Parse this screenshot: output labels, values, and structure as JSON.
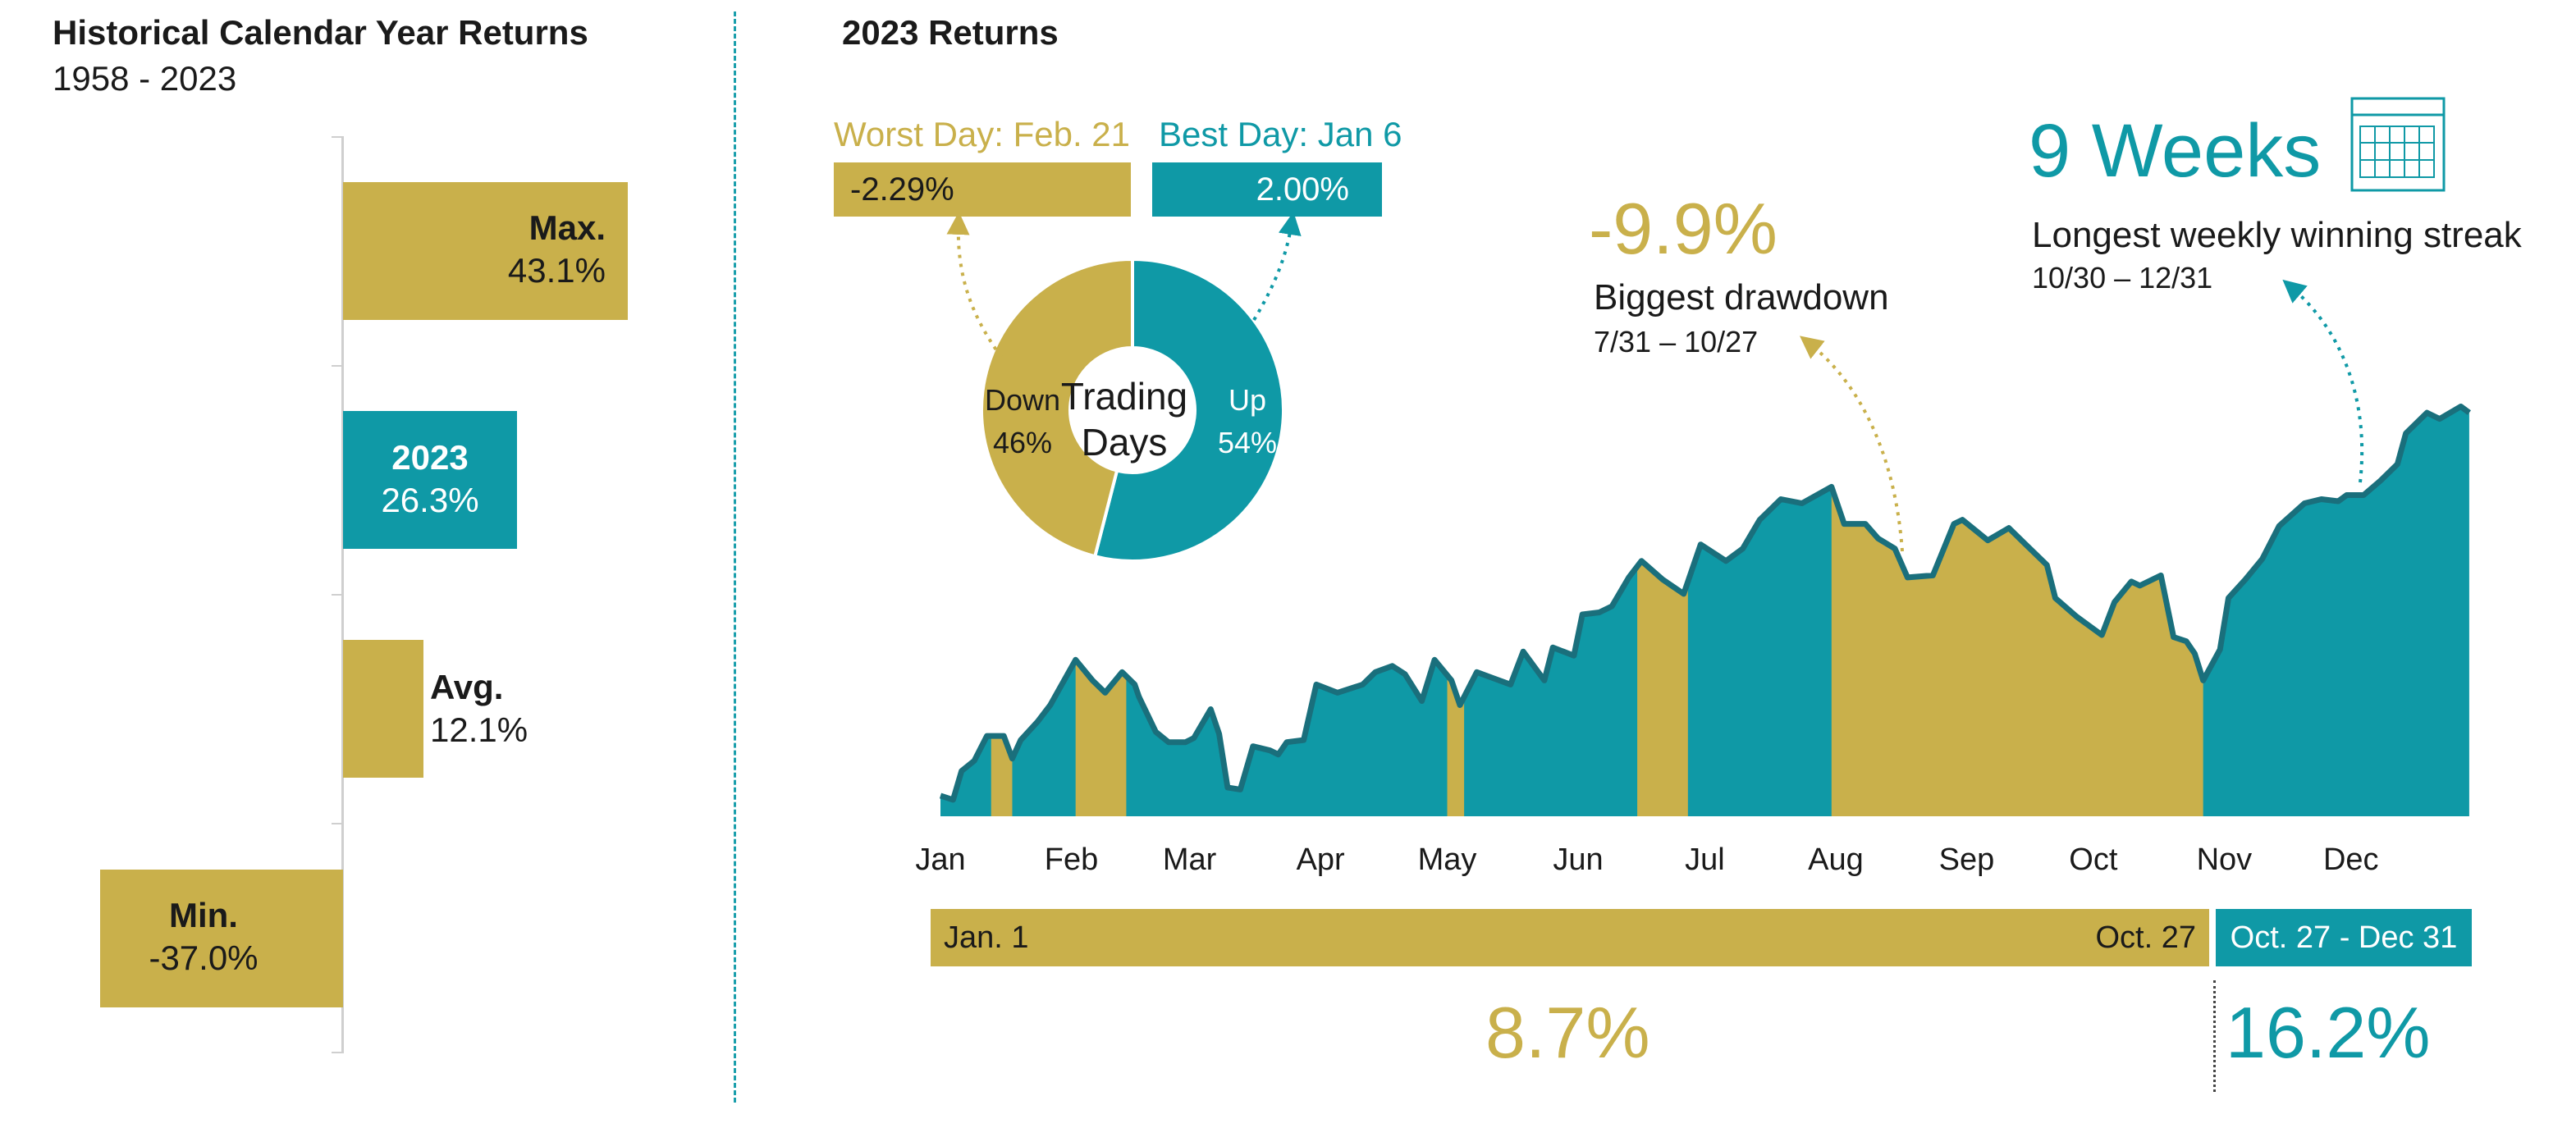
{
  "colors": {
    "gold": "#c9b04b",
    "teal": "#0f99a6",
    "line": "#1a6f7c"
  },
  "left": {
    "title": "Historical Calendar Year Returns",
    "subtitle": "1958 - 2023",
    "bars": [
      {
        "name": "Max.",
        "value_label": "43.1%",
        "value": 43.1
      },
      {
        "name": "2023",
        "value_label": "26.3%",
        "value": 26.3
      },
      {
        "name": "Avg.",
        "value_label": "12.1%",
        "value": 12.1
      },
      {
        "name": "Min.",
        "value_label": "-37.0%",
        "value": -37.0
      }
    ]
  },
  "right": {
    "title": "2023 Returns",
    "worst_day": {
      "label": "Worst Day: Feb. 21",
      "value": "-2.29%"
    },
    "best_day": {
      "label": "Best Day: Jan 6",
      "value": "2.00%"
    },
    "donut": {
      "center_line1": "Trading",
      "center_line2": "Days",
      "down_label": "Down",
      "down_pct": "46%",
      "down_value": 46,
      "up_label": "Up",
      "up_pct": "54%",
      "up_value": 54
    },
    "drawdown": {
      "value": "-9.9%",
      "label": "Biggest drawdown",
      "dates": "7/31 – 10/27"
    },
    "streak": {
      "value": "9 Weeks",
      "label": "Longest weekly winning streak",
      "dates": "10/30 – 12/31"
    },
    "periods": [
      {
        "start": "Jan. 1",
        "end": "Oct. 27",
        "return": "8.7%"
      },
      {
        "range": "Oct. 27 - Dec 31",
        "return": "16.2%"
      }
    ]
  },
  "chart_data": {
    "type": "area",
    "x_ticks": [
      "Jan",
      "Feb",
      "Mar",
      "Apr",
      "May",
      "Jun",
      "Jul",
      "Aug",
      "Sep",
      "Oct",
      "Nov",
      "Dec"
    ],
    "series": [
      {
        "values": [
          [
            "2023-01-01",
            3840
          ],
          [
            "2023-01-04",
            3830
          ],
          [
            "2023-01-06",
            3900
          ],
          [
            "2023-01-09",
            3925
          ],
          [
            "2023-01-12",
            3985
          ],
          [
            "2023-01-16",
            3985
          ],
          [
            "2023-01-18",
            3930
          ],
          [
            "2023-01-20",
            3975
          ],
          [
            "2023-01-24",
            4020
          ],
          [
            "2023-01-27",
            4060
          ],
          [
            "2023-02-02",
            4170
          ],
          [
            "2023-02-06",
            4120
          ],
          [
            "2023-02-09",
            4090
          ],
          [
            "2023-02-13",
            4140
          ],
          [
            "2023-02-16",
            4110
          ],
          [
            "2023-02-17",
            4080
          ],
          [
            "2023-02-21",
            3995
          ],
          [
            "2023-02-24",
            3970
          ],
          [
            "2023-02-28",
            3970
          ],
          [
            "2023-03-02",
            3980
          ],
          [
            "2023-03-06",
            4050
          ],
          [
            "2023-03-08",
            3990
          ],
          [
            "2023-03-10",
            3860
          ],
          [
            "2023-03-13",
            3855
          ],
          [
            "2023-03-16",
            3960
          ],
          [
            "2023-03-20",
            3950
          ],
          [
            "2023-03-22",
            3940
          ],
          [
            "2023-03-24",
            3970
          ],
          [
            "2023-03-28",
            3975
          ],
          [
            "2023-03-31",
            4110
          ],
          [
            "2023-04-05",
            4090
          ],
          [
            "2023-04-11",
            4110
          ],
          [
            "2023-04-14",
            4140
          ],
          [
            "2023-04-18",
            4155
          ],
          [
            "2023-04-21",
            4135
          ],
          [
            "2023-04-25",
            4070
          ],
          [
            "2023-04-28",
            4170
          ],
          [
            "2023-05-02",
            4120
          ],
          [
            "2023-05-04",
            4060
          ],
          [
            "2023-05-08",
            4140
          ],
          [
            "2023-05-12",
            4125
          ],
          [
            "2023-05-16",
            4110
          ],
          [
            "2023-05-19",
            4190
          ],
          [
            "2023-05-24",
            4120
          ],
          [
            "2023-05-26",
            4200
          ],
          [
            "2023-05-31",
            4180
          ],
          [
            "2023-06-02",
            4280
          ],
          [
            "2023-06-06",
            4285
          ],
          [
            "2023-06-09",
            4300
          ],
          [
            "2023-06-13",
            4370
          ],
          [
            "2023-06-16",
            4410
          ],
          [
            "2023-06-21",
            4365
          ],
          [
            "2023-06-26",
            4330
          ],
          [
            "2023-06-30",
            4450
          ],
          [
            "2023-07-06",
            4410
          ],
          [
            "2023-07-10",
            4440
          ],
          [
            "2023-07-14",
            4510
          ],
          [
            "2023-07-19",
            4560
          ],
          [
            "2023-07-24",
            4550
          ],
          [
            "2023-07-31",
            4590
          ],
          [
            "2023-08-03",
            4500
          ],
          [
            "2023-08-08",
            4500
          ],
          [
            "2023-08-11",
            4465
          ],
          [
            "2023-08-15",
            4440
          ],
          [
            "2023-08-18",
            4370
          ],
          [
            "2023-08-24",
            4375
          ],
          [
            "2023-08-29",
            4500
          ],
          [
            "2023-08-31",
            4510
          ],
          [
            "2023-09-06",
            4460
          ],
          [
            "2023-09-11",
            4490
          ],
          [
            "2023-09-15",
            4450
          ],
          [
            "2023-09-20",
            4400
          ],
          [
            "2023-09-22",
            4320
          ],
          [
            "2023-09-27",
            4275
          ],
          [
            "2023-10-03",
            4230
          ],
          [
            "2023-10-06",
            4310
          ],
          [
            "2023-10-10",
            4360
          ],
          [
            "2023-10-12",
            4350
          ],
          [
            "2023-10-17",
            4375
          ],
          [
            "2023-10-20",
            4225
          ],
          [
            "2023-10-23",
            4215
          ],
          [
            "2023-10-25",
            4185
          ],
          [
            "2023-10-27",
            4120
          ],
          [
            "2023-10-31",
            4195
          ],
          [
            "2023-11-02",
            4320
          ],
          [
            "2023-11-06",
            4365
          ],
          [
            "2023-11-10",
            4415
          ],
          [
            "2023-11-14",
            4495
          ],
          [
            "2023-11-20",
            4550
          ],
          [
            "2023-11-24",
            4560
          ],
          [
            "2023-11-28",
            4555
          ],
          [
            "2023-11-30",
            4570
          ],
          [
            "2023-12-04",
            4570
          ],
          [
            "2023-12-08",
            4605
          ],
          [
            "2023-12-12",
            4645
          ],
          [
            "2023-12-14",
            4720
          ],
          [
            "2023-12-19",
            4770
          ],
          [
            "2023-12-22",
            4755
          ],
          [
            "2023-12-27",
            4785
          ],
          [
            "2023-12-29",
            4770
          ]
        ]
      }
    ],
    "gold_segments": [
      [
        "2023-01-13",
        "2023-01-18"
      ],
      [
        "2023-02-02",
        "2023-02-14"
      ],
      [
        "2023-05-01",
        "2023-05-05"
      ],
      [
        "2023-06-15",
        "2023-06-27"
      ],
      [
        "2023-07-31",
        "2023-10-27"
      ]
    ]
  }
}
